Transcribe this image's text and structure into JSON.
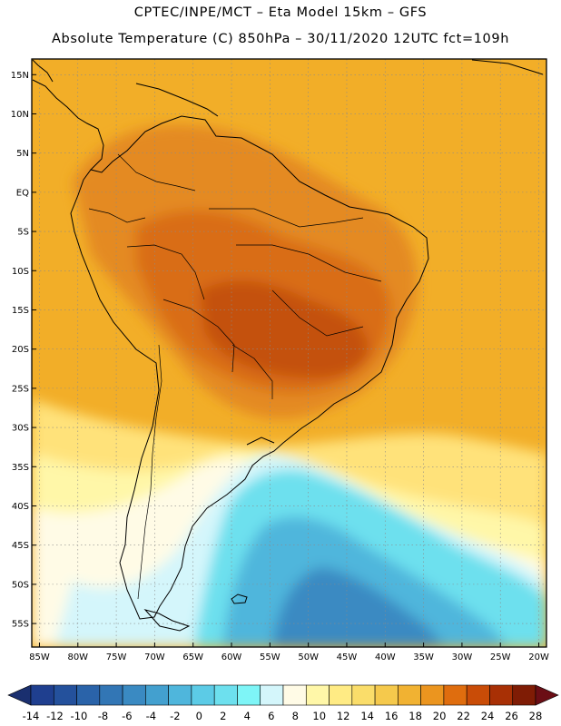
{
  "header": {
    "line1": "CPTEC/INPE/MCT –   Eta Model 15km – GFS",
    "line2": "Absolute Temperature (C) 850hPa – 30/11/2020 12UTC fct=109h"
  },
  "axes": {
    "lat_labels": [
      "15N",
      "10N",
      "5N",
      "EQ",
      "5S",
      "10S",
      "15S",
      "20S",
      "25S",
      "30S",
      "35S",
      "40S",
      "45S",
      "50S",
      "55S"
    ],
    "lat_values": [
      15,
      10,
      5,
      0,
      -5,
      -10,
      -15,
      -20,
      -25,
      -30,
      -35,
      -40,
      -45,
      -50,
      -55
    ],
    "lon_labels": [
      "85W",
      "80W",
      "75W",
      "70W",
      "65W",
      "60W",
      "55W",
      "50W",
      "45W",
      "40W",
      "35W",
      "30W",
      "25W",
      "20W"
    ],
    "lon_values": [
      -85,
      -80,
      -75,
      -70,
      -65,
      -60,
      -55,
      -50,
      -45,
      -40,
      -35,
      -30,
      -25,
      -20
    ],
    "lat_range": [
      -58,
      17
    ],
    "lon_range": [
      -86,
      -19
    ],
    "grid": "dotted"
  },
  "colorbar": {
    "labels": [
      "-14",
      "-12",
      "-10",
      "-8",
      "-6",
      "-4",
      "-2",
      "0",
      "2",
      "4",
      "6",
      "8",
      "10",
      "12",
      "14",
      "16",
      "18",
      "20",
      "22",
      "24",
      "26",
      "28"
    ],
    "colors": [
      "#1f3f8f",
      "#24519c",
      "#2a63a9",
      "#3276b5",
      "#3a8ac2",
      "#43a0cf",
      "#4fb6dc",
      "#5ccbe6",
      "#6de0ee",
      "#7ef5f7",
      "#d4f6fb",
      "#fffbe6",
      "#fff7a8",
      "#ffeb84",
      "#fadd6a",
      "#f5c94c",
      "#f1b232",
      "#eb951f",
      "#df6d0e",
      "#c94c07",
      "#a83005",
      "#7f1c05"
    ],
    "low_color": "#1a2f6f",
    "high_color": "#6b0e15"
  },
  "map": {
    "ocean_color": "#f2ae28",
    "land_color": "#e89422",
    "interior_hot": "#d96d19",
    "core_hot": "#c4510f",
    "polar_colors": [
      "#fff3b0",
      "#fffbe6",
      "#d4f6fb",
      "#6de0ee",
      "#4fb6dc",
      "#3a8ac2"
    ]
  }
}
